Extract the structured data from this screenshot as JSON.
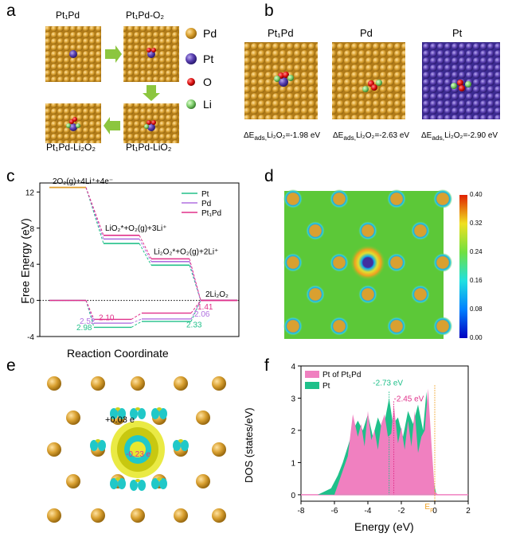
{
  "figure": {
    "panels": {
      "a": {
        "letter": "a",
        "structures": [
          "Pt₁Pd",
          "Pt₁Pd-O₂",
          "Pt₁Pd-LiO₂",
          "Pt₁Pd-Li₂O₂"
        ],
        "legend": [
          {
            "label": "Pd",
            "color": "#d9a030"
          },
          {
            "label": "Pt",
            "color": "#5a40b0"
          },
          {
            "label": "O",
            "color": "#e01010"
          },
          {
            "label": "Li",
            "color": "#7ccc6a"
          }
        ]
      },
      "b": {
        "letter": "b",
        "structures": [
          "Pt₁Pd",
          "Pd",
          "Pt"
        ],
        "energies": [
          "ΔE",
          "ΔE",
          "ΔE"
        ],
        "energy_sub": [
          "ads,",
          "ads,",
          "ads,"
        ],
        "energy_species": "Li₂O₂",
        "energy_values": [
          "=-1.98 eV",
          "=-2.63 eV",
          "=-2.90 eV"
        ]
      },
      "c": {
        "letter": "c"
      },
      "d": {
        "letter": "d",
        "colorbar_ticks": [
          "0.40",
          "0.32",
          "0.24",
          "0.16",
          "0.08",
          "0.00"
        ]
      },
      "e": {
        "letter": "e",
        "labels": [
          "+0.03 e",
          "-0.23 e"
        ]
      },
      "f": {
        "letter": "f"
      }
    }
  },
  "chart_data": [
    {
      "panel": "c",
      "type": "line",
      "xlabel": "Reaction Coordinate",
      "ylabel": "Free Energy (eV)",
      "ylim": [
        -4,
        13
      ],
      "yticks": [
        -4,
        0,
        4,
        8,
        12
      ],
      "series": [
        {
          "name": "Pt",
          "color": "#22c08a",
          "levels": [
            12.5,
            6.3,
            3.9,
            0,
            -2.98,
            -2.33
          ]
        },
        {
          "name": "Pd",
          "color": "#b070e0",
          "levels": [
            12.5,
            6.8,
            4.3,
            0,
            -2.52,
            -2.06
          ]
        },
        {
          "name": "Pt₁Pd",
          "color": "#e0308a",
          "levels": [
            12.5,
            7.2,
            4.6,
            0,
            -2.1,
            -1.41
          ]
        }
      ],
      "annotations": [
        "2O₂(g)+4Li⁺+4e⁻",
        "LiO₂*+O₂(g)+3Li⁺",
        "Li₂O₂*+O₂(g)+2Li⁺",
        "2Li₂O₂"
      ],
      "value_labels": [
        "2.10",
        "2.52",
        "2.98",
        "1.41",
        "2.06",
        "2.33"
      ]
    },
    {
      "panel": "f",
      "type": "area",
      "xlabel": "Energy (eV)",
      "ylabel": "DOS (states/eV)",
      "xlim": [
        -8,
        2
      ],
      "ylim": [
        -0.2,
        4
      ],
      "xticks": [
        -8,
        -6,
        -4,
        -2,
        0,
        2
      ],
      "yticks": [
        0,
        1,
        2,
        3,
        4
      ],
      "series": [
        {
          "name": "Pt of Pt₁Pd",
          "color": "#f080c0",
          "x": [
            -6.0,
            -5.6,
            -5.2,
            -4.9,
            -4.6,
            -4.4,
            -4.2,
            -4.0,
            -3.8,
            -3.6,
            -3.4,
            -3.2,
            -3.0,
            -2.8,
            -2.6,
            -2.45,
            -2.2,
            -2.0,
            -1.8,
            -1.6,
            -1.4,
            -1.2,
            -1.0,
            -0.8,
            -0.6,
            -0.4,
            -0.2,
            0.0,
            0.2
          ],
          "y": [
            0.0,
            0.6,
            1.2,
            2.5,
            1.8,
            2.2,
            1.5,
            2.6,
            1.7,
            2.0,
            1.4,
            2.2,
            2.5,
            1.8,
            1.9,
            2.8,
            1.6,
            2.1,
            1.4,
            2.3,
            1.5,
            2.6,
            1.3,
            1.8,
            2.0,
            3.3,
            1.6,
            0.1,
            0.0
          ]
        },
        {
          "name": "Pt",
          "color": "#1fc08a",
          "x": [
            -7.0,
            -6.6,
            -6.2,
            -5.8,
            -5.5,
            -5.2,
            -4.9,
            -4.6,
            -4.3,
            -4.0,
            -3.7,
            -3.4,
            -3.1,
            -2.73,
            -2.5,
            -2.2,
            -1.9,
            -1.6,
            -1.3,
            -1.0,
            -0.7,
            -0.5,
            -0.3,
            -0.1,
            0.1
          ],
          "y": [
            0.0,
            0.1,
            0.2,
            0.6,
            1.0,
            1.5,
            2.0,
            2.3,
            2.0,
            2.5,
            1.8,
            2.4,
            2.0,
            3.0,
            2.2,
            2.4,
            1.8,
            2.6,
            2.2,
            2.8,
            2.0,
            3.2,
            1.5,
            0.5,
            0.0
          ]
        }
      ],
      "annotations": [
        "-2.73 eV",
        "-2.45 eV",
        "E"
      ],
      "fermi_sub": "F"
    }
  ]
}
